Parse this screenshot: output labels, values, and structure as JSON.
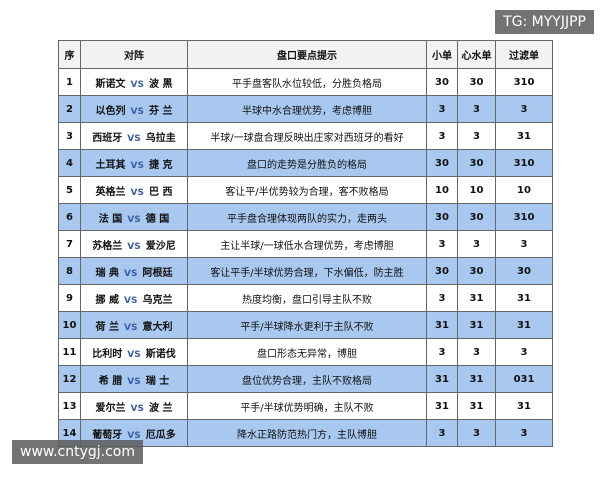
{
  "watermarks": {
    "top_right": "TG: MYYJJPP",
    "bottom_left": "www.cntygj.com"
  },
  "table": {
    "header": [
      "序",
      "对阵",
      "盘口要点提示",
      "小单",
      "心水单",
      "过滤单"
    ],
    "rows": [
      [
        "1",
        {
          "home": "斯诺文",
          "vs": "VS",
          "away": "波 黑"
        },
        "平手盘客队水位较低，分胜负格局",
        "30",
        "30",
        "310"
      ],
      [
        "2",
        {
          "home": "以色列",
          "vs": "VS",
          "away": "芬 兰"
        },
        "半球中水合理优势，考虑博胆",
        "3",
        "3",
        "3"
      ],
      [
        "3",
        {
          "home": "西班牙",
          "vs": "VS",
          "away": "乌拉圭"
        },
        "半球/一球盘合理反映出庄家对西班牙的看好",
        "3",
        "3",
        "31"
      ],
      [
        "4",
        {
          "home": "土耳其",
          "vs": "VS",
          "away": "捷 克"
        },
        "盘口的走势是分胜负的格局",
        "30",
        "30",
        "310"
      ],
      [
        "5",
        {
          "home": "英格兰",
          "vs": "VS",
          "away": "巴 西"
        },
        "客让平/半优势较为合理，客不败格局",
        "10",
        "10",
        "10"
      ],
      [
        "6",
        {
          "home": "法 国",
          "vs": "VS",
          "away": "德 国"
        },
        "平手盘合理体现两队的实力，走两头",
        "30",
        "30",
        "310"
      ],
      [
        "7",
        {
          "home": "苏格兰",
          "vs": "VS",
          "away": "爱沙尼"
        },
        "主让半球/一球低水合理优势，考虑博胆",
        "3",
        "3",
        "3"
      ],
      [
        "8",
        {
          "home": "瑞 典",
          "vs": "VS",
          "away": "阿根廷"
        },
        "客让平手/半球优势合理，下水偏低，防主胜",
        "30",
        "30",
        "30"
      ],
      [
        "9",
        {
          "home": "挪 威",
          "vs": "VS",
          "away": "乌克兰"
        },
        "热度均衡，盘口引导主队不败",
        "3",
        "31",
        "31"
      ],
      [
        "10",
        {
          "home": "荷 兰",
          "vs": "VS",
          "away": "意大利"
        },
        "平手/半球降水更利于主队不败",
        "31",
        "31",
        "31"
      ],
      [
        "11",
        {
          "home": "比利时",
          "vs": "VS",
          "away": "斯诺伐"
        },
        "盘口形态无异常，博胆",
        "3",
        "3",
        "3"
      ],
      [
        "12",
        {
          "home": "希 腊",
          "vs": "VS",
          "away": "瑞 士"
        },
        "盘位优势合理，主队不败格局",
        "31",
        "31",
        "031"
      ],
      [
        "13",
        {
          "home": "爱尔兰",
          "vs": "VS",
          "away": "波 兰"
        },
        "平手/半球优势明确，主队不败",
        "31",
        "31",
        "31"
      ],
      [
        "14",
        {
          "home": "葡萄牙",
          "vs": "VS",
          "away": "厄瓜多"
        },
        "降水正路防范热门方，主队博胆",
        "3",
        "3",
        "3"
      ]
    ]
  }
}
